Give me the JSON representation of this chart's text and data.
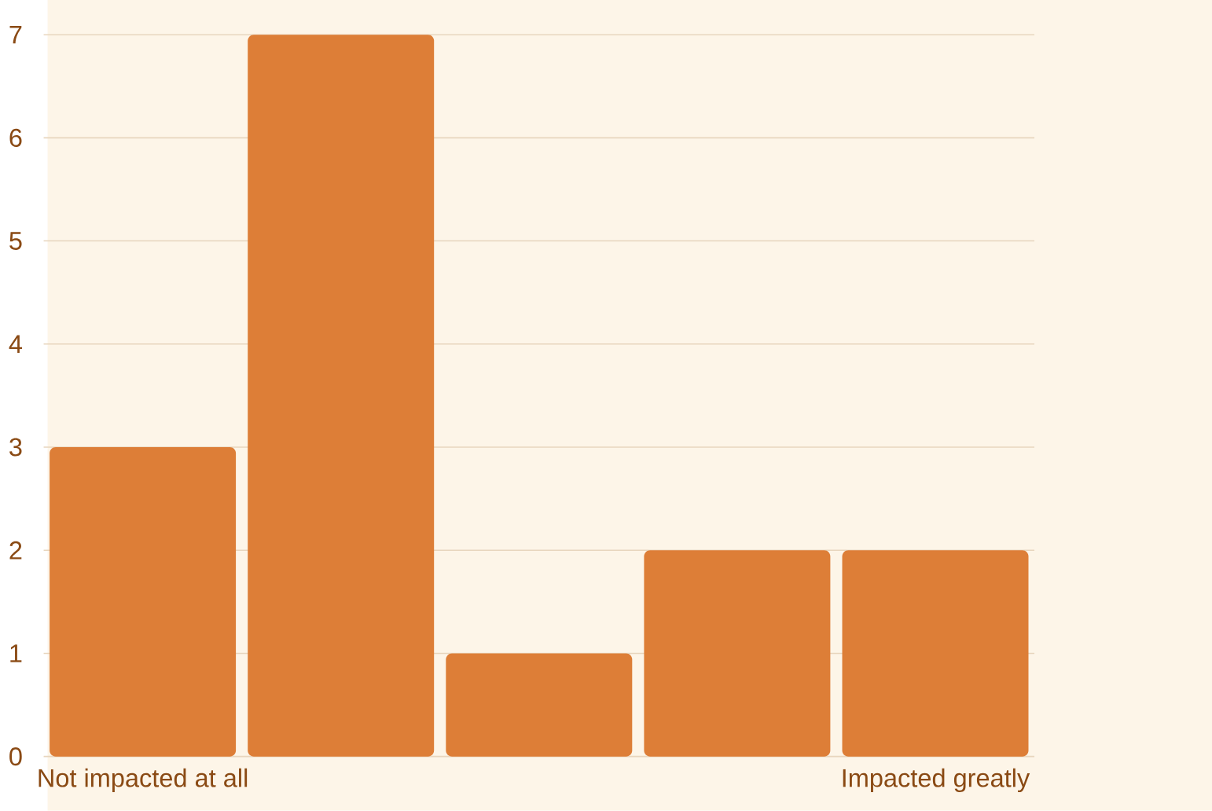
{
  "chart_data": {
    "type": "bar",
    "categories": [
      "Not impacted at all",
      null,
      null,
      null,
      "Impacted greatly"
    ],
    "values": [
      3,
      7,
      1,
      2,
      2
    ],
    "color": "#dd7e37",
    "ylim": [
      0,
      7
    ],
    "yticks": [
      0,
      1,
      2,
      3,
      4,
      5,
      6,
      7
    ],
    "grid": "y"
  }
}
